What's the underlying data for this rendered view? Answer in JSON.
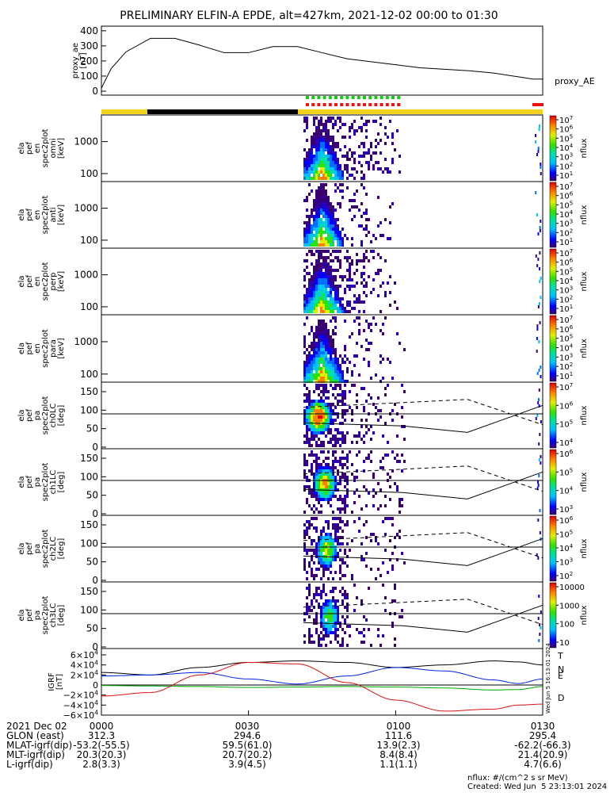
{
  "title": "PRELIMINARY ELFIN-A EPDE, alt=427km, 2021-12-02 00:00 to 01:30",
  "colors": {
    "bar_day": "#f2d21a",
    "bar_night": "#000000",
    "green_flag": "#16cc16",
    "red_flag": "#ee1111",
    "line_black": "#000000",
    "line_blue": "#0022dd",
    "line_green": "#00aa00",
    "line_red": "#dd1111"
  },
  "chart_data": [
    {
      "type": "line",
      "panel": "proxy_ae",
      "ylabel": "proxy_ae\n[nT]",
      "legend": "proxy_AE",
      "ylim": [
        0,
        420
      ],
      "yticks": [
        "400",
        "300",
        "200",
        "100",
        "0"
      ],
      "x_minutes": [
        0,
        2,
        5,
        10,
        15,
        20,
        25,
        30,
        35,
        40,
        45,
        50,
        55,
        60,
        65,
        70,
        75,
        80,
        85,
        88,
        90
      ],
      "values": [
        20,
        150,
        260,
        350,
        350,
        305,
        255,
        255,
        295,
        295,
        255,
        215,
        195,
        175,
        155,
        145,
        135,
        120,
        95,
        80,
        80
      ]
    },
    {
      "type": "heatmap",
      "panel": "spec2plot_omni",
      "ylabel": "ela\npef\nen\nspec2plot\nomni\n[keV]",
      "yticks": [
        "1000",
        "100"
      ],
      "colorbar_label": "nflux",
      "colorbar_ticks": [
        "10^7",
        "10^6",
        "10^5",
        "10^4",
        "10^3",
        "10^2",
        "10^1"
      ]
    },
    {
      "type": "heatmap",
      "panel": "spec2plot_anti",
      "ylabel": "ela\npef\nen\nspec2plot\nanti\n[keV]",
      "yticks": [
        "1000",
        "100"
      ],
      "colorbar_label": "nflux",
      "colorbar_ticks": [
        "10^7",
        "10^6",
        "10^5",
        "10^4",
        "10^3",
        "10^2",
        "10^1"
      ]
    },
    {
      "type": "heatmap",
      "panel": "spec2plot_perp",
      "ylabel": "ela\npef\nen\nspec2plot\nperp\n[keV]",
      "yticks": [
        "1000",
        "100"
      ],
      "colorbar_label": "nflux",
      "colorbar_ticks": [
        "10^7",
        "10^6",
        "10^5",
        "10^4",
        "10^3",
        "10^2",
        "10^1"
      ]
    },
    {
      "type": "heatmap",
      "panel": "spec2plot_para",
      "ylabel": "ela\npef\nen\nspec2plot\npara\n[keV]",
      "yticks": [
        "1000",
        "100"
      ],
      "colorbar_label": "nflux",
      "colorbar_ticks": [
        "10^7",
        "10^6",
        "10^5",
        "10^4",
        "10^3",
        "10^2",
        "10^1"
      ]
    },
    {
      "type": "heatmap",
      "panel": "spec2plot_ch0LC",
      "ylabel": "ela\npef\npa\nspec2plot\nch0LC\n[deg]",
      "yticks": [
        "150",
        "100",
        "50",
        "0"
      ],
      "colorbar_label": "nflux",
      "colorbar_ticks": [
        "10^7",
        "10^6",
        "10^5",
        "10^4"
      ]
    },
    {
      "type": "heatmap",
      "panel": "spec2plot_ch1LC",
      "ylabel": "ela\npef\npa\nspec2plot\nch1LC\n[deg]",
      "yticks": [
        "150",
        "100",
        "50",
        "0"
      ],
      "colorbar_label": "nflux",
      "colorbar_ticks": [
        "10^6",
        "10^5",
        "10^4",
        "10^3"
      ]
    },
    {
      "type": "heatmap",
      "panel": "spec2plot_ch2LC",
      "ylabel": "ela\npef\npa\nspec2plot\nch2LC\n[deg]",
      "yticks": [
        "150",
        "100",
        "50",
        "0"
      ],
      "colorbar_label": "nflux",
      "colorbar_ticks": [
        "10^6",
        "10^5",
        "10^4",
        "10^3",
        "10^2"
      ]
    },
    {
      "type": "heatmap",
      "panel": "spec2plot_ch3LC",
      "ylabel": "ela\npef\npa\nspec2plot\nch3LC\n[deg]",
      "yticks": [
        "150",
        "100",
        "50",
        "0"
      ],
      "colorbar_label": "nflux",
      "colorbar_ticks": [
        "10000",
        "1000",
        "100",
        "10"
      ]
    },
    {
      "type": "line",
      "panel": "igrf",
      "ylabel": "IGRF\n[nT]",
      "yticks": [
        "6×10^4",
        "4×10^4",
        "2×10^4",
        "0",
        "−2×10^4",
        "−4×10^4",
        "−6×10^4"
      ],
      "legend": [
        "T",
        "N",
        "E",
        "D"
      ],
      "x_minutes": [
        0,
        10,
        20,
        30,
        40,
        50,
        60,
        70,
        80,
        85,
        90
      ],
      "series": [
        {
          "name": "T",
          "values": [
            25000,
            20000,
            35000,
            45000,
            48000,
            45000,
            35000,
            40000,
            48000,
            46000,
            40000
          ]
        },
        {
          "name": "N",
          "values": [
            18000,
            20000,
            25000,
            12000,
            2000,
            18000,
            35000,
            28000,
            10000,
            3000,
            12000
          ]
        },
        {
          "name": "E",
          "values": [
            -1000,
            -2000,
            -3000,
            -5000,
            -4000,
            -3000,
            -4000,
            -6000,
            -10000,
            -9000,
            -3000
          ]
        },
        {
          "name": "D",
          "values": [
            -22000,
            -15000,
            20000,
            45000,
            42000,
            5000,
            -30000,
            -52000,
            -48000,
            -40000,
            -38000
          ]
        }
      ]
    }
  ],
  "xaxis": {
    "ticks": [
      "0000",
      "0030",
      "0100",
      "0130"
    ],
    "rows": [
      {
        "label": "2021 Dec 02",
        "values": [
          "0000",
          "0030",
          "0100",
          "0130"
        ]
      },
      {
        "label": "GLON (east)",
        "values": [
          "312.3",
          "294.6",
          "111.6",
          "295.4"
        ]
      },
      {
        "label": "MLAT-igrf(dip)",
        "values": [
          "-53.2(-55.5)",
          "59.5(61.0)",
          "13.9(2.3)",
          "-62.2(-66.3)"
        ]
      },
      {
        "label": "MLT-igrf(dip)",
        "values": [
          "20.3(20.3)",
          "20.7(20.2)",
          "8.4(8.4)",
          "21.4(20.9)"
        ]
      },
      {
        "label": "L-igrf(dip)",
        "values": [
          "2.8(3.3)",
          "3.9(4.5)",
          "1.1(1.1)",
          "4.7(6.6)"
        ]
      }
    ]
  },
  "footer": {
    "units": "nflux: #/(cm^2 s sr MeV)",
    "created": "Created: Wed Jun  5 23:13:01 2024",
    "side_stamp": "Wed Jun  5 16:13:01 2024"
  }
}
